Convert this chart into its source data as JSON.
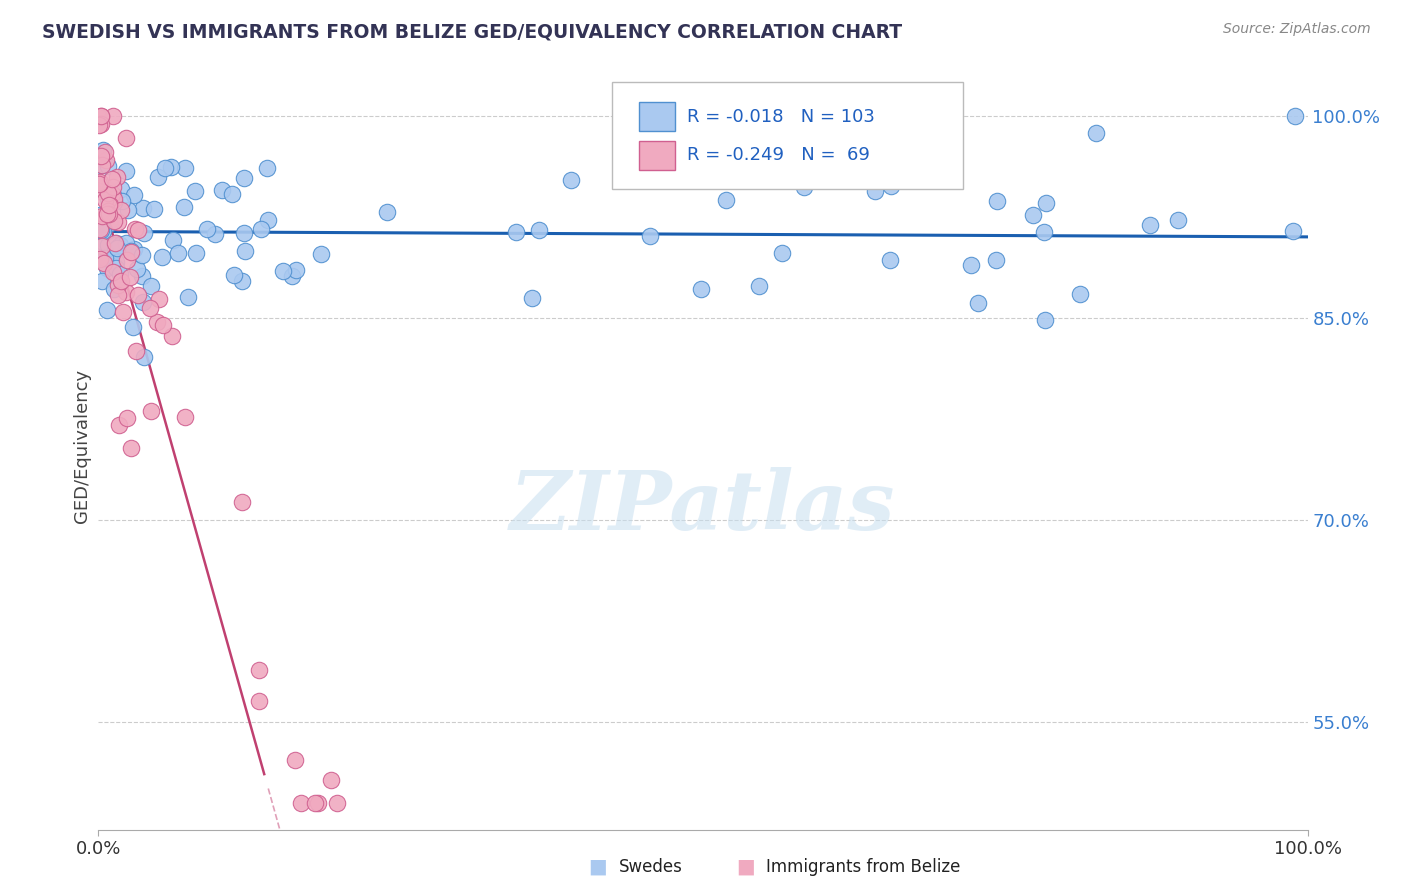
{
  "title": "SWEDISH VS IMMIGRANTS FROM BELIZE GED/EQUIVALENCY CORRELATION CHART",
  "source": "Source: ZipAtlas.com",
  "ylabel": "GED/Equivalency",
  "legend_swedes": "Swedes",
  "legend_belize": "Immigrants from Belize",
  "r_swedes": "-0.018",
  "n_swedes": "103",
  "r_belize": "-0.249",
  "n_belize": "69",
  "swedes_color": "#aac9f0",
  "belize_color": "#f0aac0",
  "swedes_edge_color": "#5090d0",
  "belize_edge_color": "#d06090",
  "swedes_line_color": "#1a5fb0",
  "belize_line_color": "#c04070",
  "belize_line_dashed_color": "#e0a0b8",
  "ytick_vals": [
    0.55,
    0.7,
    0.85,
    1.0
  ],
  "ytick_labels": [
    "55.0%",
    "70.0%",
    "85.0%",
    "100.0%"
  ],
  "watermark": "ZIPatlas",
  "xlim": [
    0.0,
    1.0
  ],
  "ylim": [
    0.47,
    1.04
  ]
}
